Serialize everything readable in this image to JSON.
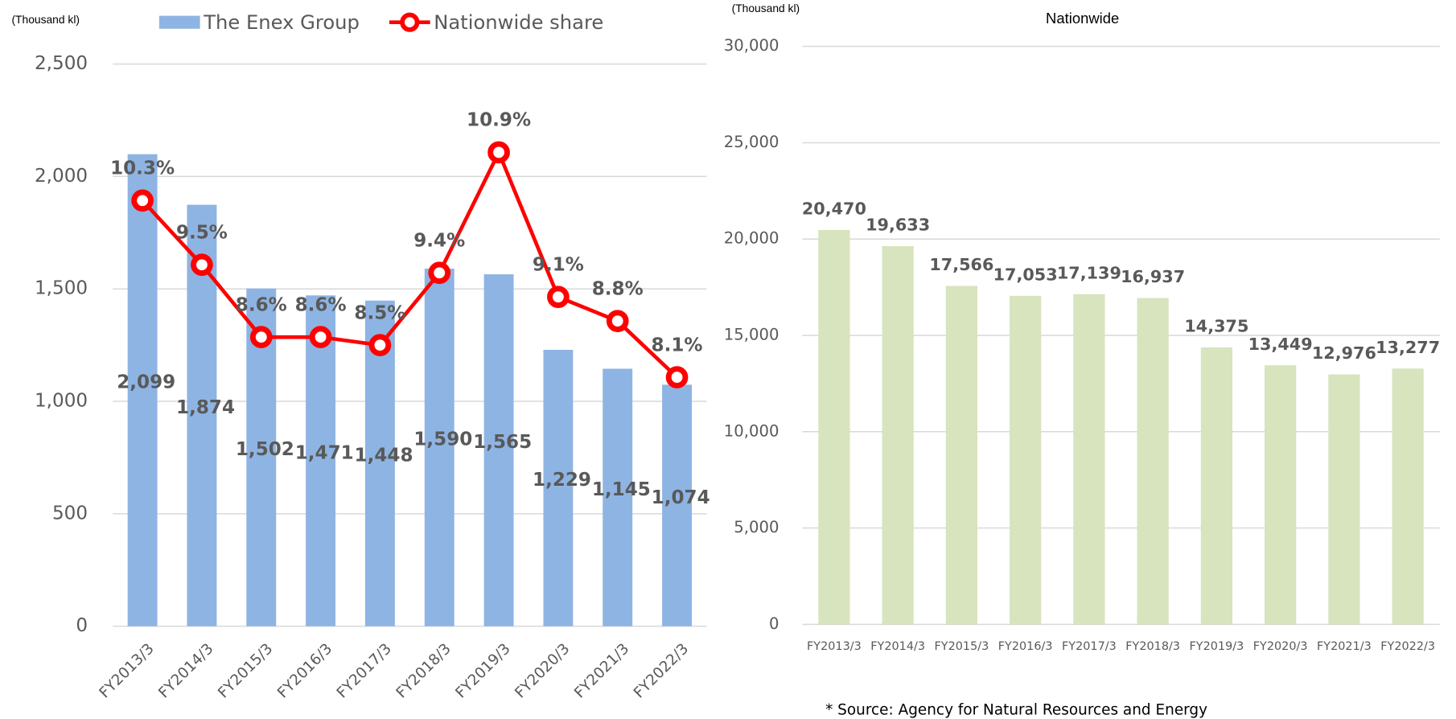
{
  "chart_data": [
    {
      "type": "bar",
      "y_label": "(Thousand kl)",
      "categories": [
        "FY2013/3",
        "FY2014/3",
        "FY2015/3",
        "FY2016/3",
        "FY2017/3",
        "FY2018/3",
        "FY2019/3",
        "FY2020/3",
        "FY2021/3",
        "FY2022/3"
      ],
      "series": [
        {
          "name": "The Enex Group",
          "type": "bar",
          "color": "#8eb4e3",
          "values": [
            2099,
            1874,
            1502,
            1471,
            1448,
            1590,
            1565,
            1229,
            1145,
            1074
          ],
          "value_labels": [
            "2,099",
            "1,874",
            "1,502",
            "1,471",
            "1,448",
            "1,590",
            "1,565",
            "1,229",
            "1,145",
            "1,074"
          ]
        },
        {
          "name": "Nationwide share",
          "type": "line",
          "axis": "y2",
          "color": "#ff0000",
          "values": [
            10.3,
            9.5,
            8.6,
            8.6,
            8.5,
            9.4,
            10.9,
            9.1,
            8.8,
            8.1
          ],
          "value_labels": [
            "10.3%",
            "9.5%",
            "8.6%",
            "8.6%",
            "8.5%",
            "9.4%",
            "10.9%",
            "9.1%",
            "8.8%",
            "8.1%"
          ]
        }
      ],
      "ylim": [
        0,
        2500
      ],
      "yticks": [
        0,
        500,
        {
          "value": 1000,
          "label": "1,000"
        },
        {
          "value": 1500,
          "label": "1,500"
        },
        {
          "value": 2000,
          "label": "2,000"
        },
        {
          "value": 2500,
          "label": "2,500"
        }
      ],
      "y2lim": [
        5,
        12
      ],
      "grid": true,
      "legend": "top"
    },
    {
      "type": "bar",
      "title": "Nationwide",
      "y_label": "(Thousand kl)",
      "categories": [
        "FY2013/3",
        "FY2014/3",
        "FY2015/3",
        "FY2016/3",
        "FY2017/3",
        "FY2018/3",
        "FY2019/3",
        "FY2020/3",
        "FY2021/3",
        "FY2022/3"
      ],
      "series": [
        {
          "name": "Nationwide",
          "type": "bar",
          "color": "#d7e4bd",
          "values": [
            20470,
            19633,
            17566,
            17053,
            17139,
            16937,
            14375,
            13449,
            12976,
            13277
          ],
          "value_labels": [
            "20,470",
            "19,633",
            "17,566",
            "17,053",
            "17,139",
            "16,937",
            "14,375",
            "13,449",
            "12,976",
            "13,277"
          ]
        }
      ],
      "ylim": [
        0,
        30000
      ],
      "yticks": [
        0,
        {
          "value": 5000,
          "label": "5,000"
        },
        {
          "value": 10000,
          "label": "10,000"
        },
        {
          "value": 15000,
          "label": "15,000"
        },
        {
          "value": 20000,
          "label": "20,000"
        },
        {
          "value": 25000,
          "label": "25,000"
        },
        {
          "value": 30000,
          "label": "30,000"
        }
      ],
      "grid": true,
      "note": "* Source: Agency for Natural Resources and Energy"
    }
  ]
}
